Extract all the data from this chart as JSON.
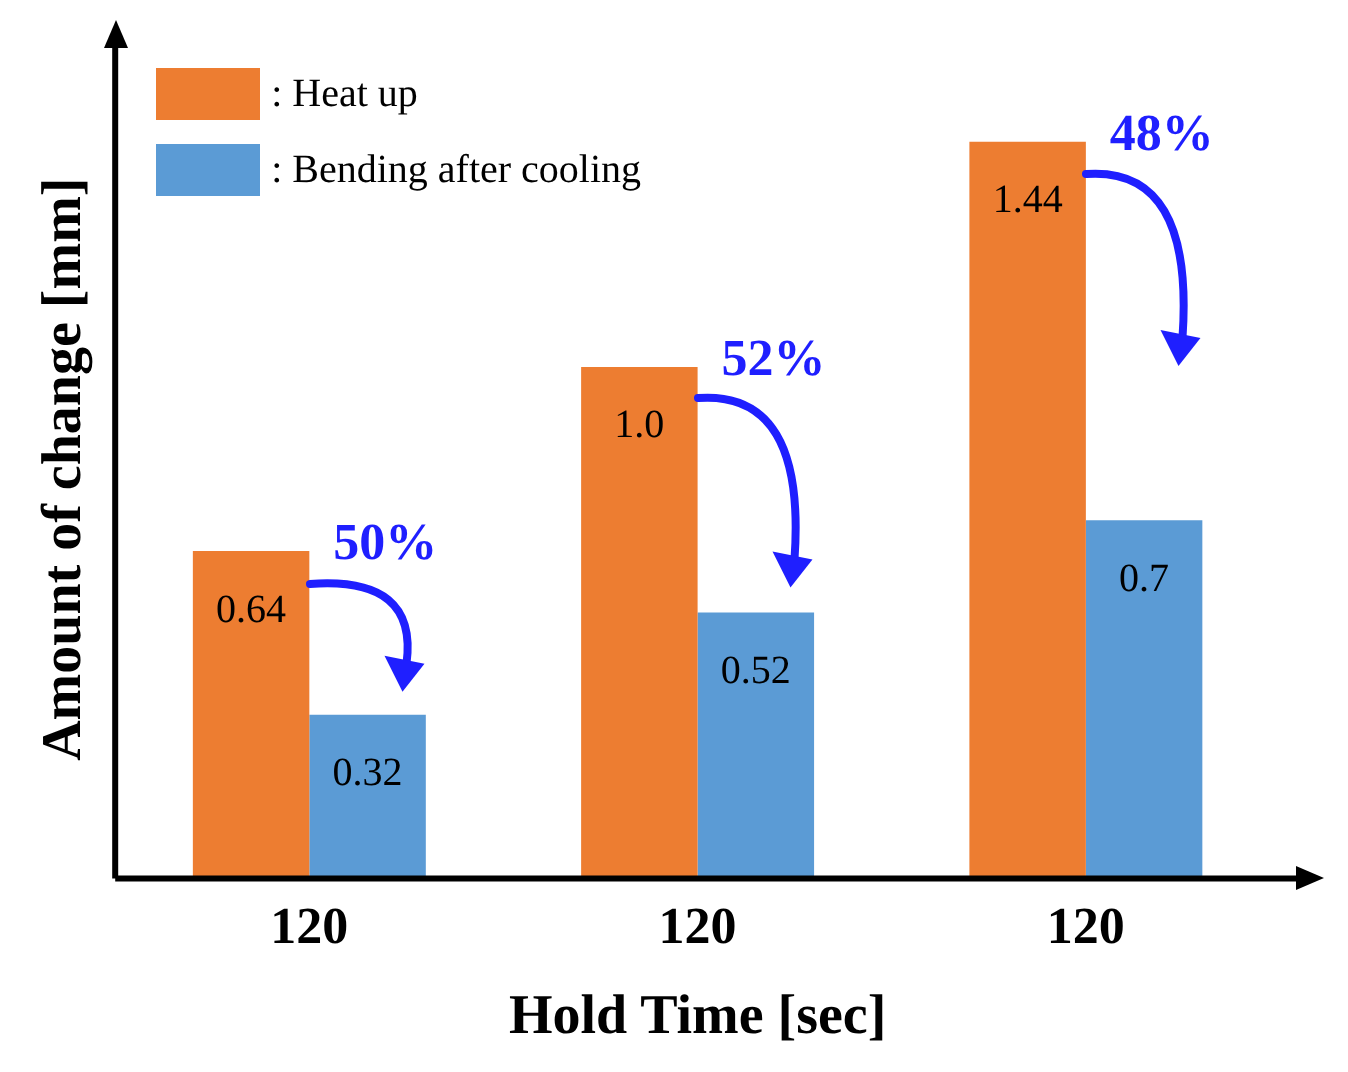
{
  "chart_data": {
    "type": "bar",
    "xlabel": "Hold Time [sec]",
    "ylabel": "Amount of change [mm]",
    "categories": [
      "120",
      "120",
      "120"
    ],
    "series": [
      {
        "name": ": Heat up",
        "color": "#ed7d31",
        "values": [
          0.64,
          1.0,
          1.44
        ],
        "value_labels": [
          "0.64",
          "1.0",
          "1.44"
        ]
      },
      {
        "name": ": Bending after cooling",
        "color": "#5b9bd5",
        "values": [
          0.32,
          0.52,
          0.7
        ],
        "value_labels": [
          "0.32",
          "0.52",
          "0.7"
        ]
      }
    ],
    "tick_labels": "x",
    "legend": "top left",
    "grid": false,
    "annotations": [
      "50%",
      "52%",
      "48%"
    ]
  }
}
